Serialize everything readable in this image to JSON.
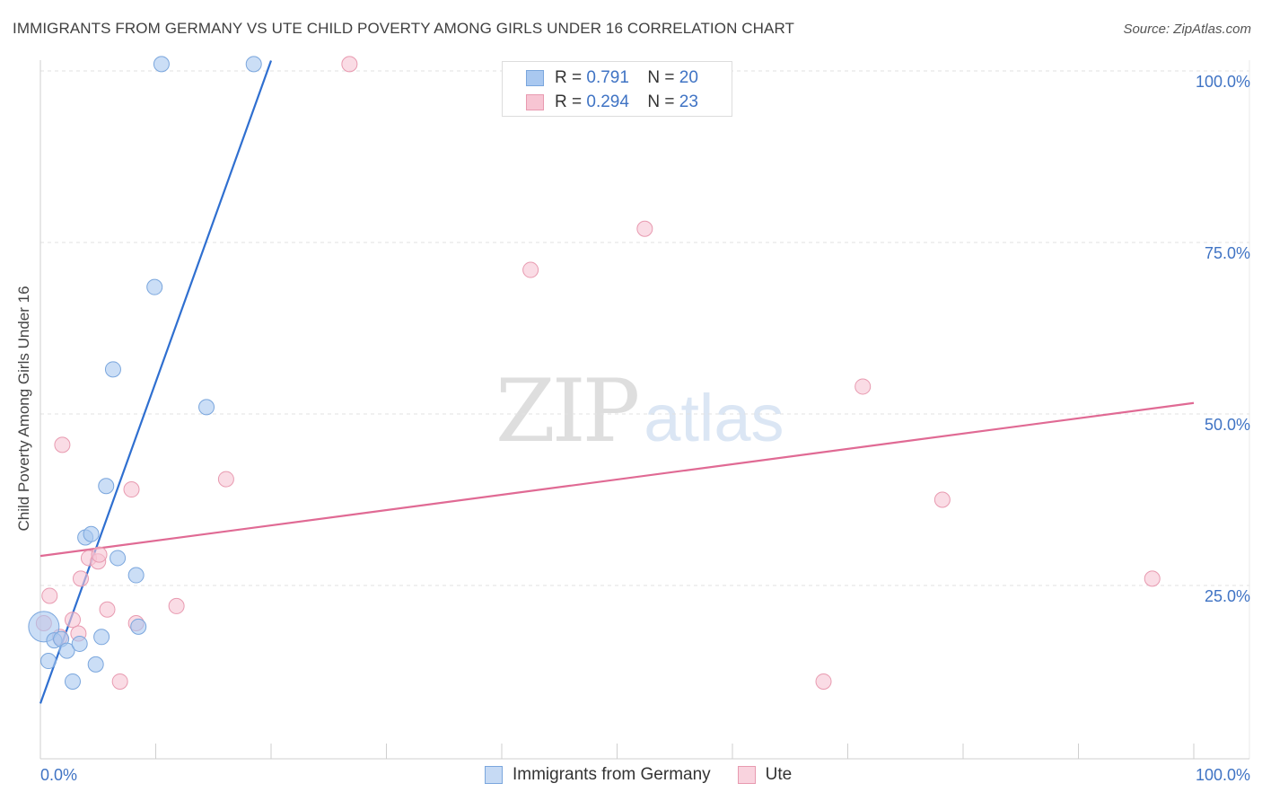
{
  "title": "IMMIGRANTS FROM GERMANY VS UTE CHILD POVERTY AMONG GIRLS UNDER 16 CORRELATION CHART",
  "source": "Source: ZipAtlas.com",
  "watermark": {
    "zip": "ZIP",
    "atlas": "atlas"
  },
  "legend": {
    "rows": [
      {
        "r_label": "R =",
        "r_value": "0.791",
        "n_label": "N =",
        "n_value": "20"
      },
      {
        "r_label": "R =",
        "r_value": "0.294",
        "n_label": "N =",
        "n_value": "23"
      }
    ]
  },
  "chart_data": {
    "type": "scatter",
    "title": "IMMIGRANTS FROM GERMANY VS UTE CHILD POVERTY AMONG GIRLS UNDER 16 CORRELATION CHART",
    "xlabel": "",
    "ylabel": "Child Poverty Among Girls Under 16",
    "xlim": [
      0,
      100
    ],
    "ylim": [
      0,
      100
    ],
    "x_tick_labels": [
      "0.0%",
      "100.0%"
    ],
    "y_tick_labels": [
      {
        "value": 100,
        "label": "100.0%"
      },
      {
        "value": 75,
        "label": "75.0%"
      },
      {
        "value": 50,
        "label": "50.0%"
      },
      {
        "value": 25,
        "label": "25.0%"
      }
    ],
    "series": [
      {
        "name": "Immigrants from Germany",
        "color": "#a9c8f0",
        "stroke": "#7aa6dd",
        "line_color": "#2f6fd0",
        "r": 0.791,
        "n": 20,
        "trend": {
          "x1": 0,
          "y1": 7.8,
          "x2": 20,
          "y2": 101.5
        },
        "points": [
          {
            "x": 0.3,
            "y": 19.0,
            "big": true
          },
          {
            "x": 0.7,
            "y": 14.0
          },
          {
            "x": 1.2,
            "y": 17.0
          },
          {
            "x": 1.8,
            "y": 17.2
          },
          {
            "x": 2.3,
            "y": 15.5
          },
          {
            "x": 2.8,
            "y": 11.0
          },
          {
            "x": 3.4,
            "y": 16.5
          },
          {
            "x": 3.9,
            "y": 32.0
          },
          {
            "x": 4.4,
            "y": 32.5
          },
          {
            "x": 4.8,
            "y": 13.5
          },
          {
            "x": 5.3,
            "y": 17.5
          },
          {
            "x": 5.7,
            "y": 39.5
          },
          {
            "x": 6.3,
            "y": 56.5
          },
          {
            "x": 6.7,
            "y": 29.0
          },
          {
            "x": 8.3,
            "y": 26.5
          },
          {
            "x": 8.5,
            "y": 19.0
          },
          {
            "x": 9.9,
            "y": 68.5
          },
          {
            "x": 10.5,
            "y": 101.0
          },
          {
            "x": 14.4,
            "y": 51.0
          },
          {
            "x": 18.5,
            "y": 101.0
          }
        ]
      },
      {
        "name": "Ute",
        "color": "#f7c5d3",
        "stroke": "#e89ab0",
        "line_color": "#e06a94",
        "r": 0.294,
        "n": 23,
        "trend": {
          "x1": 0,
          "y1": 29.3,
          "x2": 100,
          "y2": 51.6
        },
        "points": [
          {
            "x": 0.3,
            "y": 19.5
          },
          {
            "x": 0.8,
            "y": 23.5
          },
          {
            "x": 1.7,
            "y": 17.5
          },
          {
            "x": 1.9,
            "y": 45.5
          },
          {
            "x": 2.8,
            "y": 20.0
          },
          {
            "x": 3.3,
            "y": 18.0
          },
          {
            "x": 3.5,
            "y": 26.0
          },
          {
            "x": 4.2,
            "y": 29.0
          },
          {
            "x": 5.0,
            "y": 28.5
          },
          {
            "x": 5.1,
            "y": 29.5
          },
          {
            "x": 5.8,
            "y": 21.5
          },
          {
            "x": 6.9,
            "y": 11.0
          },
          {
            "x": 7.9,
            "y": 39.0
          },
          {
            "x": 8.3,
            "y": 19.5
          },
          {
            "x": 11.8,
            "y": 22.0
          },
          {
            "x": 16.1,
            "y": 40.5
          },
          {
            "x": 26.8,
            "y": 101.0
          },
          {
            "x": 42.5,
            "y": 71.0
          },
          {
            "x": 52.4,
            "y": 77.0
          },
          {
            "x": 67.9,
            "y": 11.0
          },
          {
            "x": 71.3,
            "y": 54.0
          },
          {
            "x": 78.2,
            "y": 37.5
          },
          {
            "x": 96.4,
            "y": 26.0
          }
        ]
      }
    ]
  }
}
